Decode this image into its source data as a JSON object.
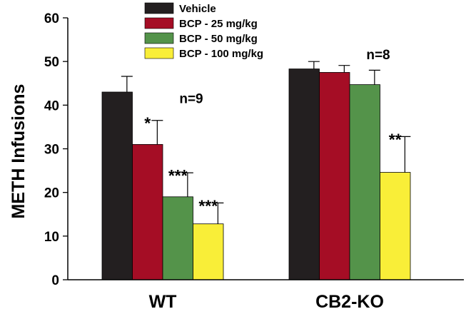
{
  "chart_data": {
    "type": "bar",
    "title": "",
    "xlabel": "",
    "ylabel": "METH Infusions",
    "ylim": [
      0,
      60
    ],
    "yticks": [
      "0",
      "10",
      "20",
      "30",
      "40",
      "50",
      "60"
    ],
    "grid": false,
    "legend_position": "top-left",
    "categories": [
      "WT",
      "CB2-KO"
    ],
    "series": [
      {
        "name": "Vehicle",
        "color": "#231f20",
        "values": [
          43.0,
          48.3
        ],
        "errors": [
          3.6,
          1.7
        ],
        "sig": [
          "",
          ""
        ]
      },
      {
        "name": "BCP - 25 mg/kg",
        "color": "#a50d25",
        "values": [
          31.0,
          47.5
        ],
        "errors": [
          5.5,
          1.6
        ],
        "sig": [
          "*",
          ""
        ]
      },
      {
        "name": "BCP - 50 mg/kg",
        "color": "#54934a",
        "values": [
          19.0,
          44.7
        ],
        "errors": [
          5.5,
          3.3
        ],
        "sig": [
          "***",
          ""
        ]
      },
      {
        "name": "BCP - 100 mg/kg",
        "color": "#f9ee38",
        "values": [
          12.8,
          24.6
        ],
        "errors": [
          4.8,
          8.2
        ],
        "sig": [
          "***",
          "**"
        ]
      }
    ],
    "annotations": [
      {
        "group": "WT",
        "text": "n=9",
        "y": 40.5
      },
      {
        "group": "CB2-KO",
        "text": "n=8",
        "y": 50.5
      }
    ]
  }
}
